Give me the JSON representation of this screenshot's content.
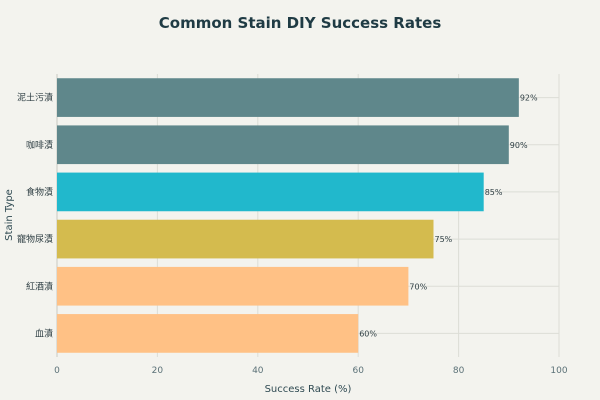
{
  "chart_data": {
    "type": "bar",
    "orientation": "horizontal",
    "title": "Common Stain DIY Success Rates",
    "xlabel": "Success Rate (%)",
    "ylabel": "Stain Type",
    "xlim": [
      0,
      100
    ],
    "xticks": [
      "0",
      "20",
      "40",
      "60",
      "80",
      "100"
    ],
    "grid": true,
    "categories": [
      "泥土污漬",
      "咖啡漬",
      "食物漬",
      "寵物尿漬",
      "紅酒漬",
      "血漬"
    ],
    "values": [
      92,
      90,
      85,
      75,
      70,
      60
    ],
    "value_labels": [
      "92%",
      "90%",
      "85%",
      "75%",
      "70%",
      "60%"
    ],
    "colors": [
      "#5f878b",
      "#5f878b",
      "#21b8cc",
      "#d4bb4e",
      "#ffc185",
      "#ffc185"
    ]
  }
}
